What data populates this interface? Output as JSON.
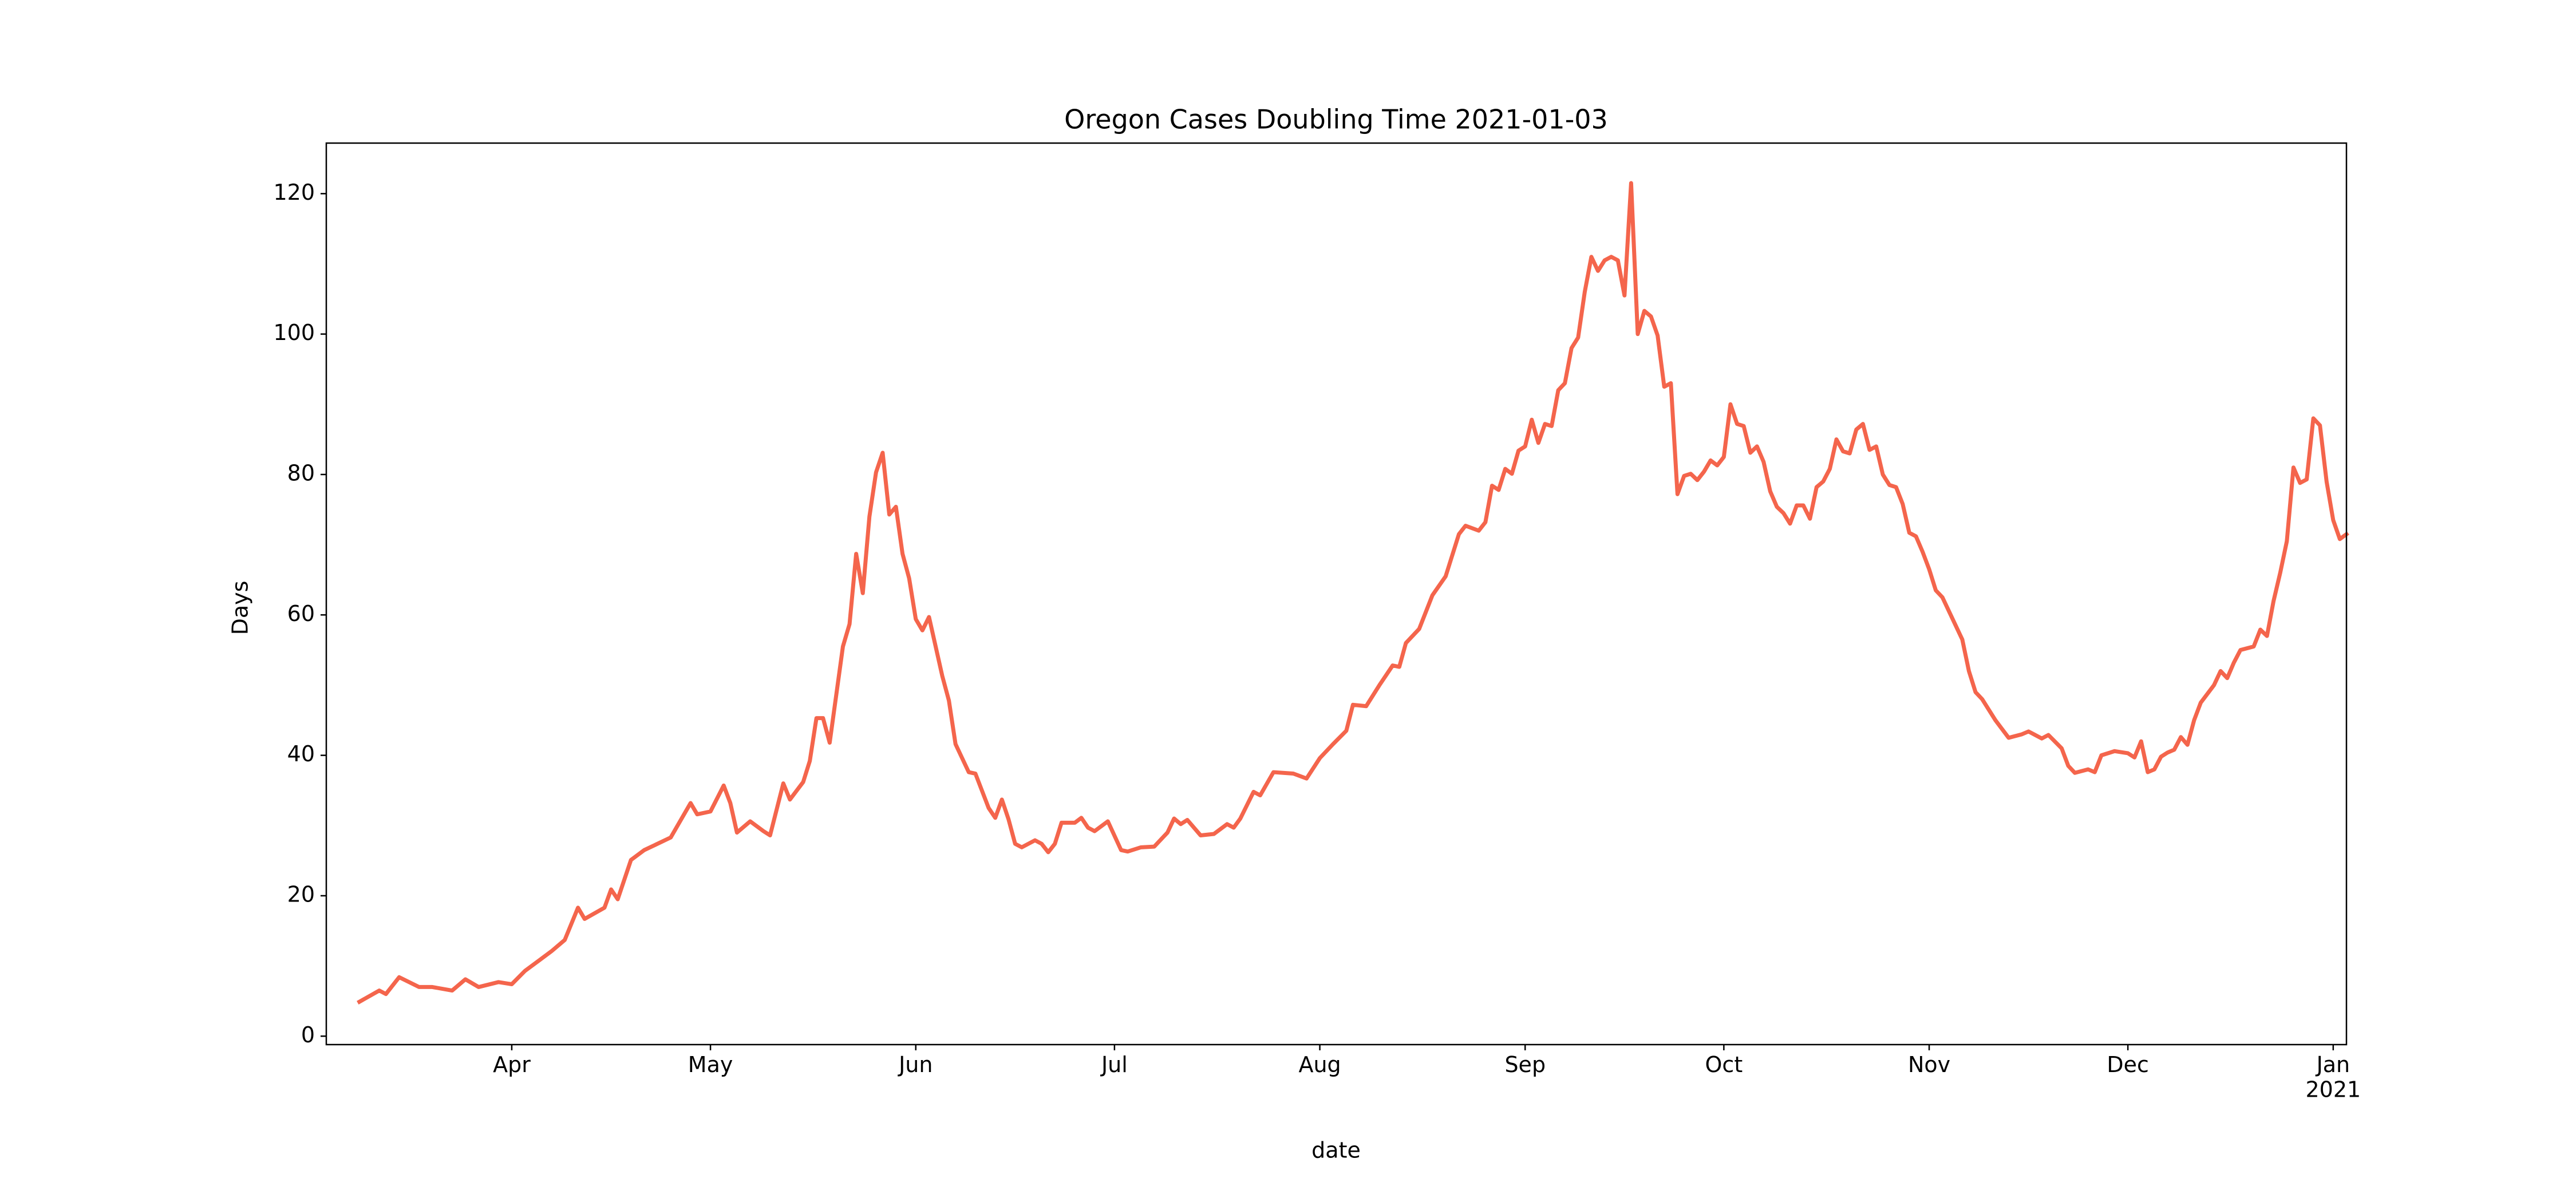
{
  "chart_data": {
    "type": "line",
    "title": "Oregon Cases Doubling Time 2021-01-03",
    "x_label": "date",
    "y_label": "Days",
    "color": "#f4654c",
    "xlim": [
      "2020-03-04",
      "2021-01-03"
    ],
    "ylim": [
      -1.2,
      127.2
    ],
    "yticks": [
      0,
      20,
      40,
      60,
      80,
      100,
      120
    ],
    "xticks": [
      {
        "value": "2020-04-01",
        "label": "Apr"
      },
      {
        "value": "2020-05-01",
        "label": "May"
      },
      {
        "value": "2020-06-01",
        "label": "Jun"
      },
      {
        "value": "2020-07-01",
        "label": "Jul"
      },
      {
        "value": "2020-08-01",
        "label": "Aug"
      },
      {
        "value": "2020-09-01",
        "label": "Sep"
      },
      {
        "value": "2020-10-01",
        "label": "Oct"
      },
      {
        "value": "2020-11-01",
        "label": "Nov"
      },
      {
        "value": "2020-12-01",
        "label": "Dec"
      },
      {
        "value": "2021-01-01",
        "label": "Jan\n2021"
      }
    ],
    "x": [
      "2020-03-09",
      "2020-03-12",
      "2020-03-13",
      "2020-03-15",
      "2020-03-18",
      "2020-03-20",
      "2020-03-23",
      "2020-03-25",
      "2020-03-27",
      "2020-03-30",
      "2020-04-01",
      "2020-04-03",
      "2020-04-05",
      "2020-04-07",
      "2020-04-09",
      "2020-04-11",
      "2020-04-12",
      "2020-04-15",
      "2020-04-16",
      "2020-04-17",
      "2020-04-19",
      "2020-04-21",
      "2020-04-23",
      "2020-04-25",
      "2020-04-28",
      "2020-04-29",
      "2020-05-01",
      "2020-05-03",
      "2020-05-04",
      "2020-05-05",
      "2020-05-07",
      "2020-05-09",
      "2020-05-10",
      "2020-05-12",
      "2020-05-13",
      "2020-05-15",
      "2020-05-16",
      "2020-05-17",
      "2020-05-18",
      "2020-05-19",
      "2020-05-21",
      "2020-05-22",
      "2020-05-23",
      "2020-05-24",
      "2020-05-25",
      "2020-05-26",
      "2020-05-27",
      "2020-05-28",
      "2020-05-29",
      "2020-05-30",
      "2020-05-31",
      "2020-06-01",
      "2020-06-02",
      "2020-06-03",
      "2020-06-05",
      "2020-06-06",
      "2020-06-07",
      "2020-06-09",
      "2020-06-10",
      "2020-06-12",
      "2020-06-13",
      "2020-06-14",
      "2020-06-15",
      "2020-06-16",
      "2020-06-17",
      "2020-06-19",
      "2020-06-20",
      "2020-06-21",
      "2020-06-22",
      "2020-06-23",
      "2020-06-25",
      "2020-06-26",
      "2020-06-27",
      "2020-06-28",
      "2020-06-30",
      "2020-07-02",
      "2020-07-03",
      "2020-07-05",
      "2020-07-07",
      "2020-07-09",
      "2020-07-10",
      "2020-07-11",
      "2020-07-12",
      "2020-07-14",
      "2020-07-16",
      "2020-07-18",
      "2020-07-19",
      "2020-07-20",
      "2020-07-22",
      "2020-07-23",
      "2020-07-25",
      "2020-07-28",
      "2020-07-30",
      "2020-08-01",
      "2020-08-03",
      "2020-08-05",
      "2020-08-06",
      "2020-08-08",
      "2020-08-10",
      "2020-08-12",
      "2020-08-13",
      "2020-08-14",
      "2020-08-16",
      "2020-08-18",
      "2020-08-20",
      "2020-08-22",
      "2020-08-23",
      "2020-08-25",
      "2020-08-26",
      "2020-08-27",
      "2020-08-28",
      "2020-08-29",
      "2020-08-30",
      "2020-08-31",
      "2020-09-01",
      "2020-09-02",
      "2020-09-03",
      "2020-09-04",
      "2020-09-05",
      "2020-09-06",
      "2020-09-07",
      "2020-09-08",
      "2020-09-09",
      "2020-09-10",
      "2020-09-11",
      "2020-09-12",
      "2020-09-13",
      "2020-09-14",
      "2020-09-15",
      "2020-09-16",
      "2020-09-17",
      "2020-09-18",
      "2020-09-19",
      "2020-09-20",
      "2020-09-21",
      "2020-09-22",
      "2020-09-23",
      "2020-09-24",
      "2020-09-25",
      "2020-09-26",
      "2020-09-27",
      "2020-09-28",
      "2020-09-29",
      "2020-09-30",
      "2020-10-01",
      "2020-10-02",
      "2020-10-03",
      "2020-10-04",
      "2020-10-05",
      "2020-10-06",
      "2020-10-07",
      "2020-10-08",
      "2020-10-09",
      "2020-10-10",
      "2020-10-11",
      "2020-10-12",
      "2020-10-13",
      "2020-10-14",
      "2020-10-15",
      "2020-10-16",
      "2020-10-17",
      "2020-10-18",
      "2020-10-19",
      "2020-10-20",
      "2020-10-21",
      "2020-10-22",
      "2020-10-23",
      "2020-10-24",
      "2020-10-25",
      "2020-10-26",
      "2020-10-27",
      "2020-10-28",
      "2020-10-29",
      "2020-10-30",
      "2020-10-31",
      "2020-11-01",
      "2020-11-02",
      "2020-11-03",
      "2020-11-05",
      "2020-11-06",
      "2020-11-07",
      "2020-11-08",
      "2020-11-09",
      "2020-11-11",
      "2020-11-13",
      "2020-11-15",
      "2020-11-16",
      "2020-11-18",
      "2020-11-19",
      "2020-11-21",
      "2020-11-22",
      "2020-11-23",
      "2020-11-25",
      "2020-11-26",
      "2020-11-27",
      "2020-11-29",
      "2020-12-01",
      "2020-12-02",
      "2020-12-03",
      "2020-12-04",
      "2020-12-05",
      "2020-12-06",
      "2020-12-07",
      "2020-12-08",
      "2020-12-09",
      "2020-12-10",
      "2020-12-11",
      "2020-12-12",
      "2020-12-14",
      "2020-12-15",
      "2020-12-16",
      "2020-12-17",
      "2020-12-18",
      "2020-12-20",
      "2020-12-21",
      "2020-12-22",
      "2020-12-23",
      "2020-12-24",
      "2020-12-25",
      "2020-12-26",
      "2020-12-27",
      "2020-12-28",
      "2020-12-29",
      "2020-12-30",
      "2020-12-31",
      "2021-01-01",
      "2021-01-02",
      "2021-01-03"
    ],
    "values": [
      4.9,
      6.5,
      6.0,
      8.4,
      7.0,
      7.0,
      6.5,
      8.1,
      7.0,
      7.7,
      7.4,
      9.3,
      10.7,
      12.1,
      13.7,
      18.3,
      16.7,
      18.3,
      20.9,
      19.5,
      25.1,
      26.5,
      27.4,
      28.3,
      33.2,
      31.6,
      32.0,
      35.7,
      33.2,
      29.0,
      30.6,
      29.2,
      28.6,
      36.0,
      33.7,
      36.2,
      39.2,
      45.3,
      45.3,
      41.8,
      55.5,
      58.7,
      68.7,
      63.1,
      74.0,
      80.3,
      83.1,
      74.3,
      75.4,
      68.7,
      65.2,
      59.4,
      57.8,
      59.7,
      51.3,
      47.8,
      41.6,
      37.6,
      37.4,
      32.5,
      31.1,
      33.7,
      30.9,
      27.4,
      26.9,
      27.9,
      27.4,
      26.2,
      27.4,
      30.4,
      30.4,
      31.1,
      29.7,
      29.2,
      30.6,
      26.5,
      26.3,
      26.9,
      27.0,
      29.0,
      31.0,
      30.2,
      30.8,
      28.6,
      28.8,
      30.2,
      29.7,
      31.0,
      34.8,
      34.3,
      37.6,
      37.4,
      36.7,
      39.6,
      41.6,
      43.5,
      47.2,
      47.0,
      50.0,
      52.8,
      52.6,
      56.0,
      58.0,
      62.8,
      65.5,
      71.5,
      72.7,
      72.0,
      73.2,
      78.4,
      77.8,
      80.8,
      80.1,
      83.4,
      84.0,
      87.8,
      84.5,
      87.2,
      86.9,
      92.0,
      93.0,
      98.0,
      99.5,
      106.0,
      111.0,
      109.0,
      110.5,
      111.0,
      110.5,
      105.5,
      121.5,
      100.0,
      103.3,
      102.5,
      99.8,
      92.5,
      93.0,
      77.2,
      79.8,
      80.1,
      79.2,
      80.4,
      82.0,
      81.3,
      82.5,
      90.0,
      87.2,
      86.9,
      83.1,
      84.0,
      81.8,
      77.6,
      75.4,
      74.5,
      73.0,
      75.6,
      75.6,
      73.7,
      78.2,
      79.0,
      80.8,
      85.0,
      83.3,
      83.0,
      86.4,
      87.2,
      83.5,
      84.0,
      80.0,
      78.5,
      78.2,
      75.8,
      71.7,
      71.2,
      69.0,
      66.5,
      63.5,
      62.5,
      58.5,
      56.5,
      52.0,
      49.0,
      48.0,
      45.0,
      42.5,
      43.0,
      43.4,
      42.4,
      42.9,
      41.0,
      38.5,
      37.5,
      38.0,
      37.6,
      40.0,
      40.6,
      40.3,
      39.7,
      42.0,
      37.6,
      38.0,
      39.8,
      40.4,
      40.8,
      42.6,
      41.5,
      45.0,
      47.5,
      50.0,
      52.0,
      51.0,
      53.2,
      55.0,
      55.5,
      57.9,
      57.0,
      62.0,
      66.0,
      70.5,
      81.0,
      78.8,
      79.3,
      88.0,
      87.0,
      79.0,
      73.5,
      70.8,
      71.5
    ]
  }
}
